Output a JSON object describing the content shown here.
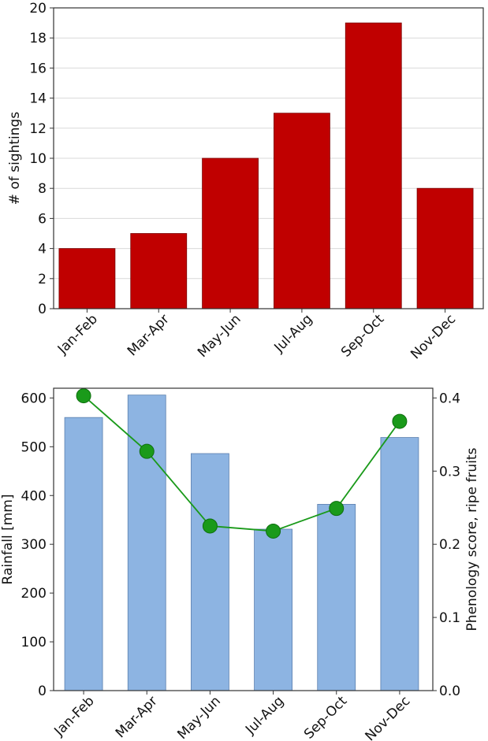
{
  "chart_data": [
    {
      "type": "bar",
      "categories": [
        "Jan-Feb",
        "Mar-Apr",
        "May-Jun",
        "Jul-Aug",
        "Sep-Oct",
        "Nov-Dec"
      ],
      "values": [
        4,
        5,
        10,
        13,
        19,
        8
      ],
      "title": "",
      "xlabel": "",
      "ylabel": "# of sightings",
      "ylim": [
        0,
        20
      ],
      "yticks": [
        "0",
        "2",
        "4",
        "6",
        "8",
        "10",
        "12",
        "14",
        "16",
        "18",
        "20"
      ],
      "grid": true,
      "bar_color": "#c00000"
    },
    {
      "type": "bar+line",
      "categories": [
        "Jan-Feb",
        "Mar-Apr",
        "May-Jun",
        "Jul-Aug",
        "Sep-Oct",
        "Nov-Dec"
      ],
      "title": "",
      "xlabel": "",
      "ylabel": "Rainfall [mm]",
      "ylabel_right": "Phenology score, ripe fruits",
      "ylim": [
        0,
        620
      ],
      "ylim_right": [
        0,
        0.4133
      ],
      "yticks": [
        "0",
        "100",
        "200",
        "300",
        "400",
        "500",
        "600"
      ],
      "yticks_right": [
        "0.0",
        "0.1",
        "0.2",
        "0.3",
        "0.4"
      ],
      "grid": false,
      "series": [
        {
          "values": [
            560,
            606,
            486,
            331,
            382,
            519
          ],
          "axis": "left",
          "kind": "bar",
          "color": "#8db4e2"
        },
        {
          "values": [
            0.403,
            0.327,
            0.225,
            0.218,
            0.249,
            0.368
          ],
          "axis": "right",
          "kind": "line",
          "color": "#1a9a1a"
        }
      ]
    }
  ]
}
